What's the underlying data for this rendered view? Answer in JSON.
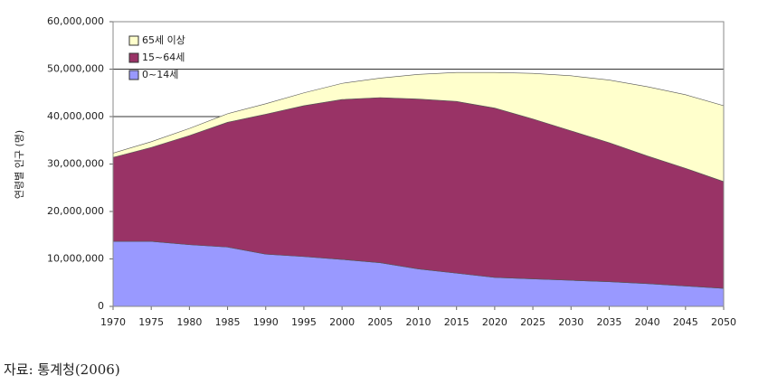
{
  "chart_data": {
    "type": "stacked-area",
    "y_label": "연령별 인구 (명)",
    "source": "자료: 통계청(2006)",
    "x": [
      1970,
      1975,
      1980,
      1985,
      1990,
      1995,
      2000,
      2005,
      2010,
      2015,
      2020,
      2025,
      2030,
      2035,
      2040,
      2045,
      2050
    ],
    "xlim": [
      1970,
      2050
    ],
    "xticks": [
      1970,
      1975,
      1980,
      1985,
      1990,
      1995,
      2000,
      2005,
      2010,
      2015,
      2020,
      2025,
      2030,
      2035,
      2040,
      2045,
      2050
    ],
    "ylim": [
      0,
      60000000
    ],
    "yticks": [
      0,
      {
        "value": 10000000,
        "label": "10,000,000"
      },
      {
        "value": 20000000,
        "label": "20,000,000"
      },
      {
        "value": 30000000,
        "label": "30,000,000"
      },
      {
        "value": 40000000,
        "label": "40,000,000"
      },
      {
        "value": 50000000,
        "label": "50,000,000"
      },
      {
        "value": 60000000,
        "label": "60,000,000"
      }
    ],
    "grid": true,
    "legend": "top-left",
    "series": [
      {
        "name": "0~14세",
        "color": "#9999ff",
        "values": [
          13700000,
          13700000,
          13000000,
          12500000,
          11000000,
          10500000,
          9900000,
          9200000,
          7900000,
          7000000,
          6100000,
          5800000,
          5500000,
          5200000,
          4800000,
          4300000,
          3800000
        ]
      },
      {
        "name": "15~64세",
        "color": "#993366",
        "values": [
          17700000,
          19800000,
          23000000,
          26300000,
          29500000,
          31800000,
          33700000,
          34800000,
          35800000,
          36200000,
          35700000,
          33700000,
          31500000,
          29300000,
          26900000,
          24800000,
          22500000
        ]
      },
      {
        "name": "65세 이상",
        "color": "#ffffcc",
        "values": [
          900000,
          1200000,
          1500000,
          1800000,
          2200000,
          2700000,
          3400000,
          4100000,
          5200000,
          6100000,
          7500000,
          9600000,
          11600000,
          13200000,
          14600000,
          15500000,
          16000000
        ]
      }
    ]
  }
}
